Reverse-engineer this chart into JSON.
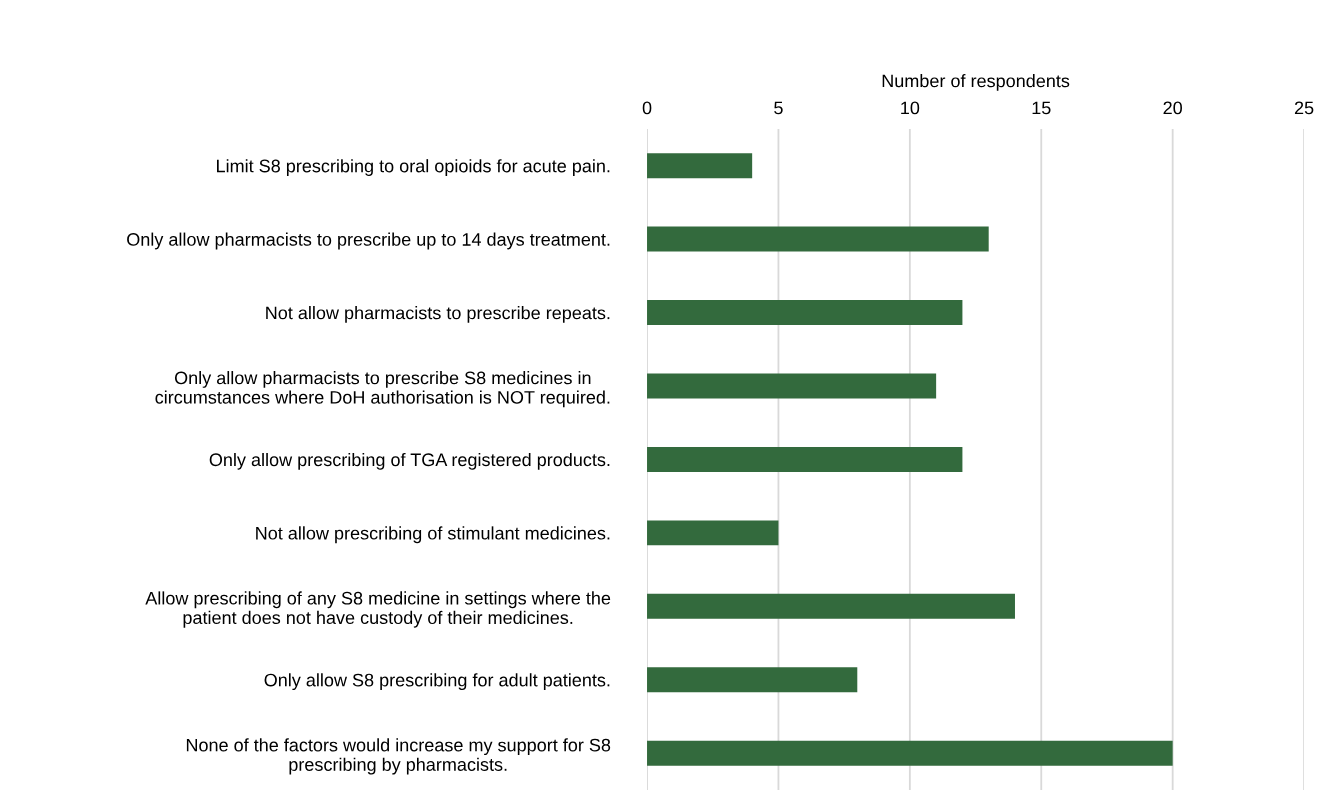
{
  "chart_data": {
    "type": "bar",
    "orientation": "horizontal",
    "xlabel": "Number of respondents",
    "categories": [
      "Limit S8 prescribing to oral opioids for acute pain.",
      "Only allow pharmacists to prescribe up to 14 days treatment.",
      "Not allow pharmacists to prescribe repeats.",
      "Only allow pharmacists to prescribe S8 medicines in\ncircumstances where DoH authorisation is NOT required.",
      "Only allow prescribing of TGA registered products.",
      "Not allow prescribing of stimulant medicines.",
      "Allow prescribing of any S8 medicine in settings where the\npatient does not have custody of their medicines.",
      "Only allow S8 prescribing for adult patients.",
      "None of the factors would increase my support for S8\nprescribing by pharmacists."
    ],
    "values": [
      4,
      13,
      12,
      11,
      12,
      5,
      14,
      8,
      20
    ],
    "color": "#336a3d",
    "xlim": [
      0,
      25
    ],
    "xticks": [
      0,
      5,
      10,
      15,
      20,
      25
    ],
    "grid": "x"
  }
}
